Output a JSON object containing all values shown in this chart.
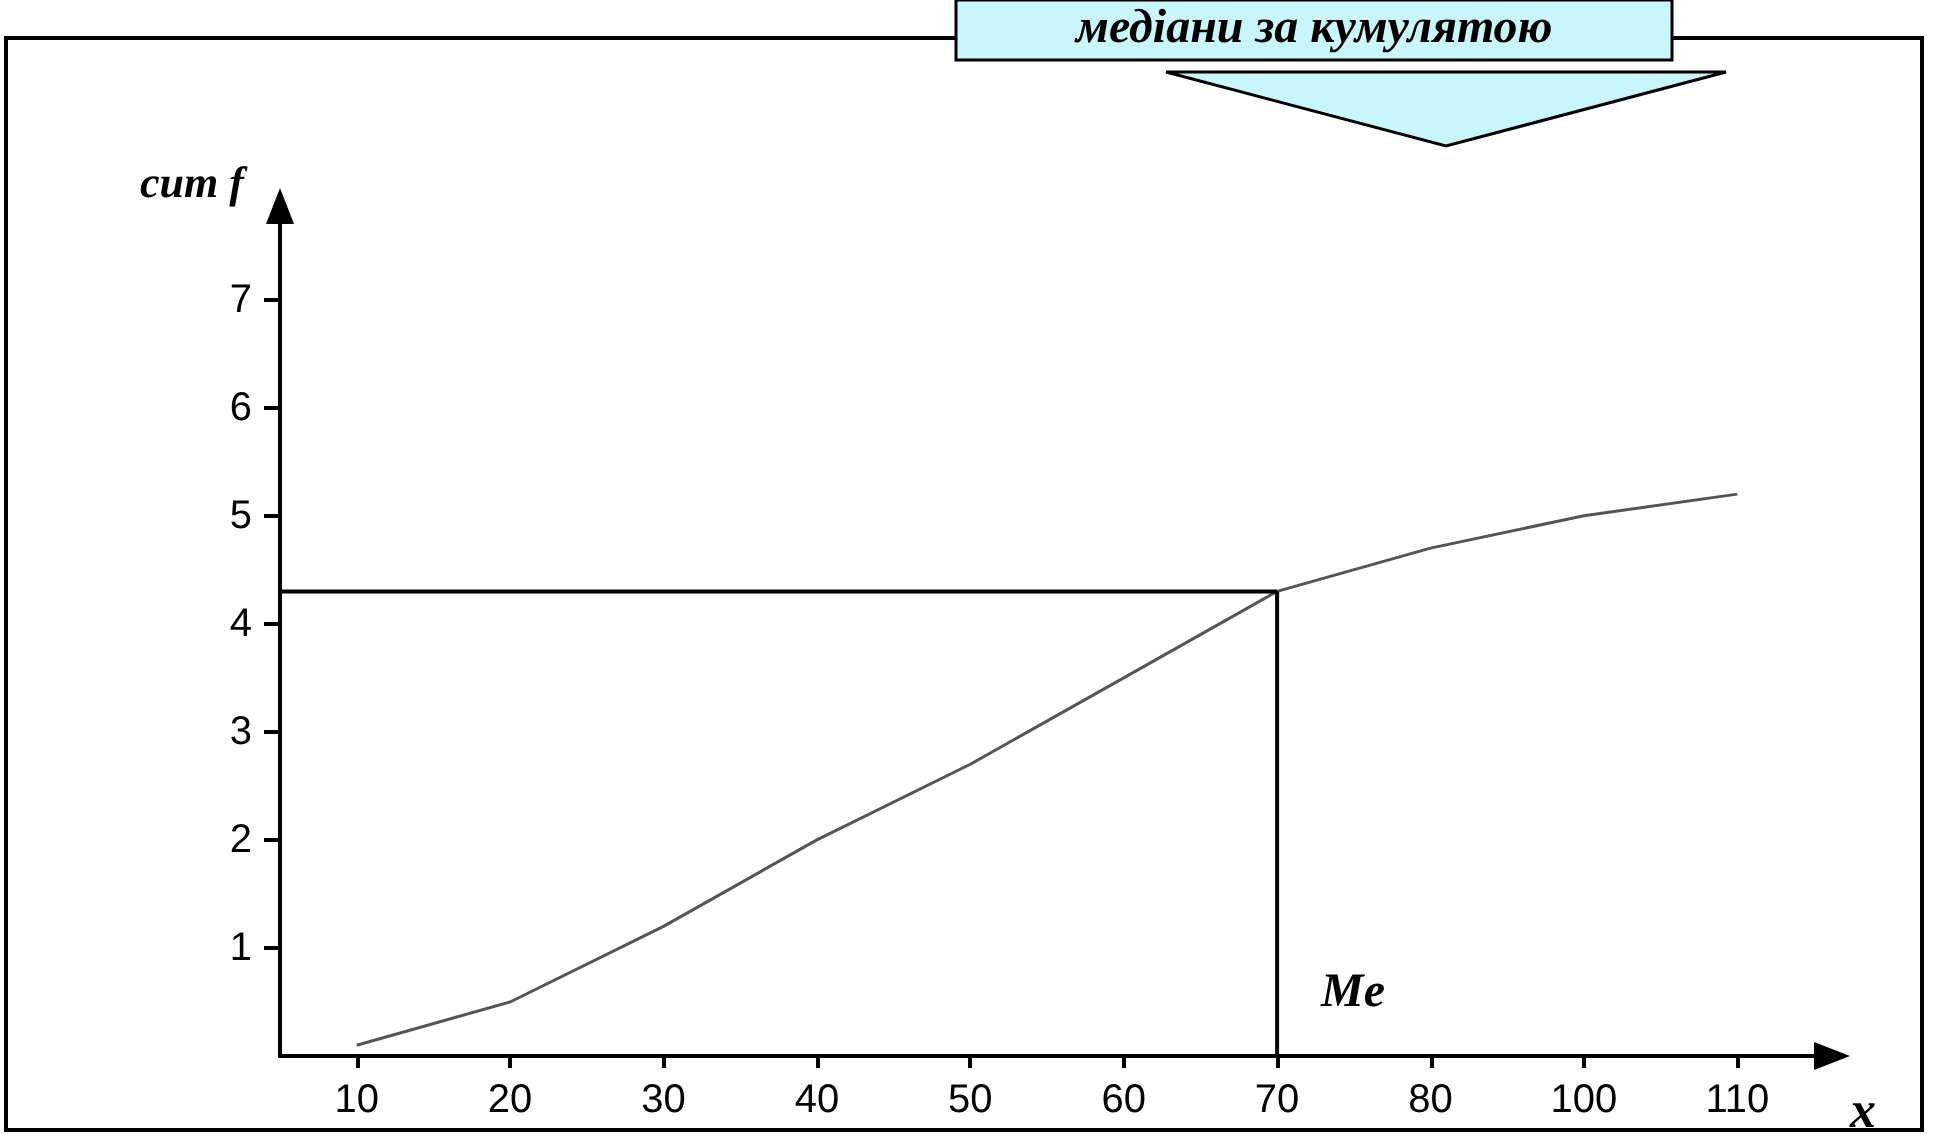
{
  "chart_data": {
    "type": "line",
    "title": "медіани за кумулятою",
    "xlabel": "x",
    "ylabel": "cum f",
    "categories": [
      "10",
      "20",
      "30",
      "40",
      "50",
      "60",
      "70",
      "80",
      "100",
      "110"
    ],
    "series": [
      {
        "color": "#555555",
        "values": [
          0.1,
          0.5,
          1.2,
          2.0,
          2.7,
          3.5,
          4.3,
          4.7,
          5.0,
          5.2
        ]
      }
    ],
    "ylim": [
      0,
      7.7
    ],
    "yticks": [
      1,
      2,
      3,
      4,
      5,
      6,
      7
    ],
    "grid": false,
    "marker": "none",
    "ref_lines": [
      {
        "axis": "x",
        "value": "70",
        "label": "Me",
        "color": "#000000"
      },
      {
        "axis": "y",
        "value": 4.3,
        "label": null,
        "color": "#000000"
      }
    ]
  }
}
